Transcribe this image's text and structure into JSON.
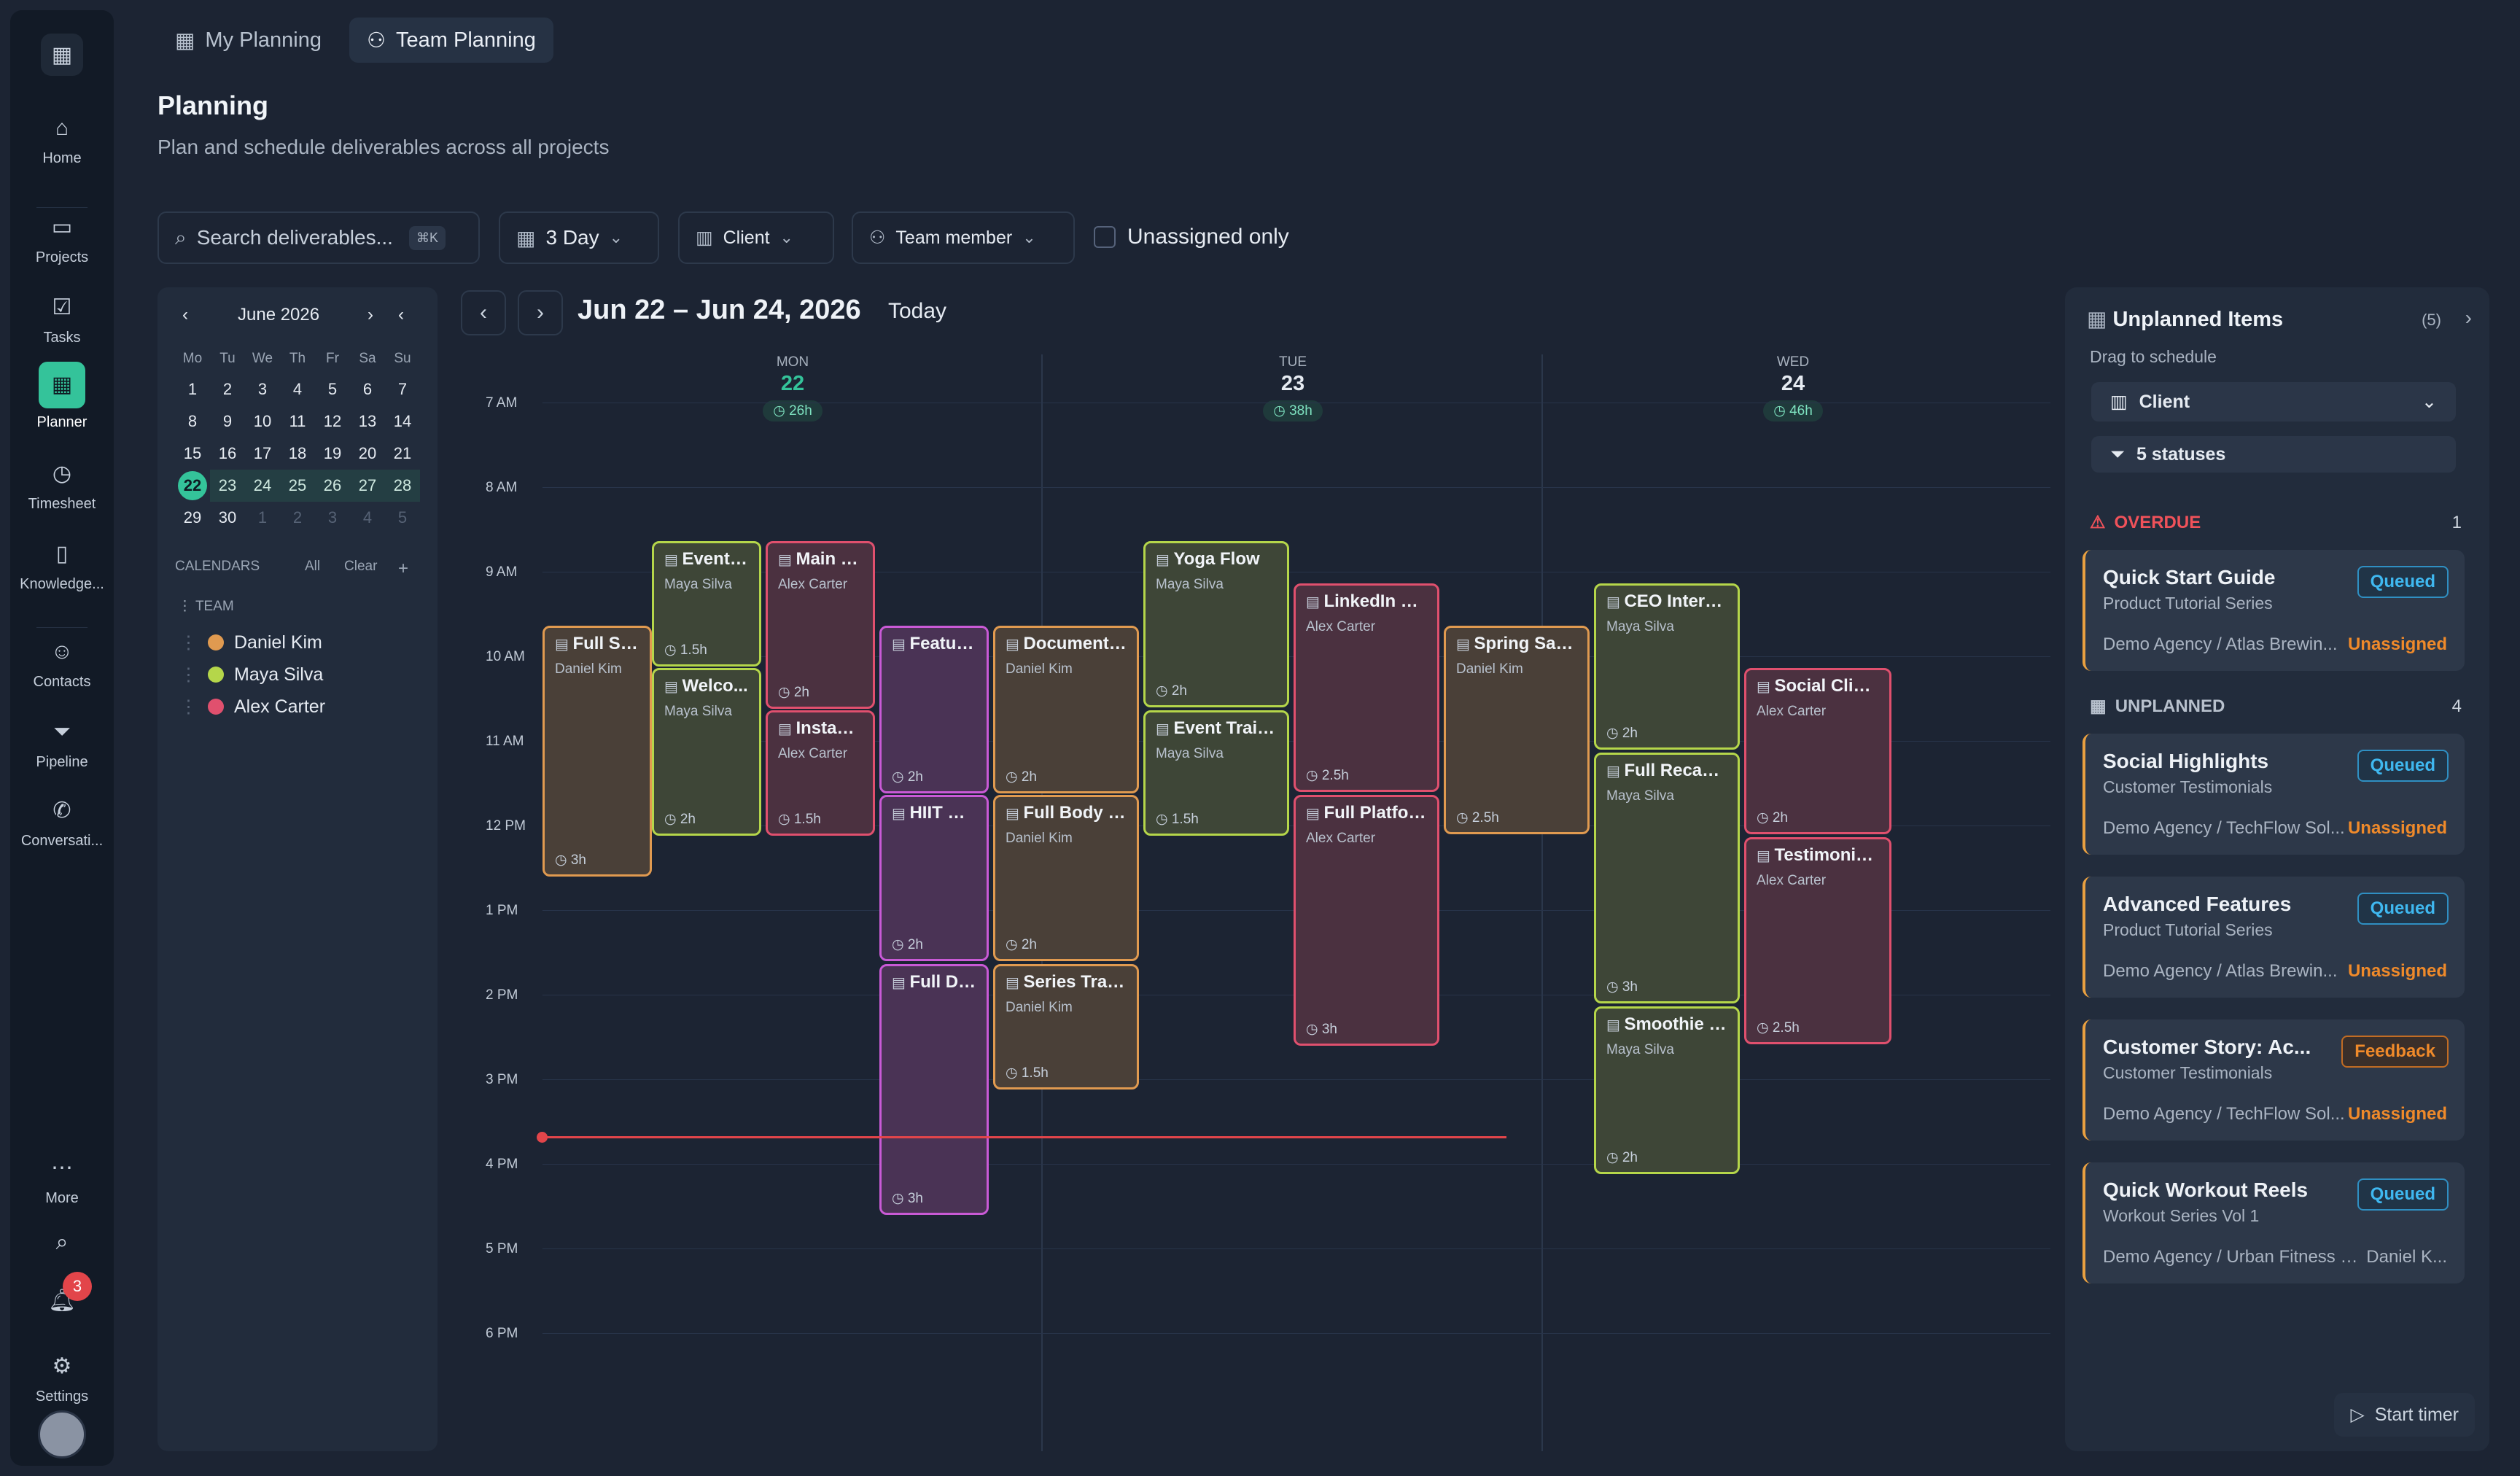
{
  "nav": {
    "items": [
      {
        "label": "Home",
        "icon": "home-icon"
      },
      {
        "label": "Projects",
        "icon": "projects-icon"
      },
      {
        "label": "Tasks",
        "icon": "tasks-icon"
      },
      {
        "label": "Planner",
        "icon": "planner-icon",
        "active": true
      },
      {
        "label": "Timesheet",
        "icon": "clock-icon"
      },
      {
        "label": "Knowledge...",
        "icon": "book-icon"
      },
      {
        "label": "Contacts",
        "icon": "contacts-icon"
      },
      {
        "label": "Pipeline",
        "icon": "filter-icon"
      },
      {
        "label": "Conversati...",
        "icon": "phone-icon"
      }
    ],
    "more": "More",
    "settings": "Settings",
    "notifications_count": "3"
  },
  "tabs": [
    {
      "label": "My Planning"
    },
    {
      "label": "Team Planning",
      "active": true
    }
  ],
  "page": {
    "title": "Planning",
    "subtitle": "Plan and schedule deliverables across all projects"
  },
  "filters": {
    "search_placeholder": "Search deliverables...",
    "search_shortcut": "⌘K",
    "view": "3 Day",
    "client": "Client",
    "team_member": "Team member",
    "unassigned_only": "Unassigned only"
  },
  "mini_calendar": {
    "month": "June 2026",
    "weekdays": [
      "Mo",
      "Tu",
      "We",
      "Th",
      "Fr",
      "Sa",
      "Su"
    ],
    "weeks": [
      [
        "1",
        "2",
        "3",
        "4",
        "5",
        "6",
        "7"
      ],
      [
        "8",
        "9",
        "10",
        "11",
        "12",
        "13",
        "14"
      ],
      [
        "15",
        "16",
        "17",
        "18",
        "19",
        "20",
        "21"
      ],
      [
        "22",
        "23",
        "24",
        "25",
        "26",
        "27",
        "28"
      ],
      [
        "29",
        "30",
        "1",
        "2",
        "3",
        "4",
        "5"
      ]
    ],
    "today": "22",
    "calendars_label": "CALENDARS",
    "all": "All",
    "clear": "Clear",
    "team_label": "TEAM",
    "members": [
      {
        "name": "Daniel Kim",
        "color": "#e09a50"
      },
      {
        "name": "Maya Silva",
        "color": "#b5d64a"
      },
      {
        "name": "Alex Carter",
        "color": "#e0506e"
      }
    ]
  },
  "calendar": {
    "range": "Jun 22 – Jun 24, 2026",
    "today_label": "Today",
    "days": [
      {
        "name": "MON",
        "date": "22",
        "hours": "26h",
        "today": true
      },
      {
        "name": "TUE",
        "date": "23",
        "hours": "38h"
      },
      {
        "name": "WED",
        "date": "24",
        "hours": "46h"
      }
    ],
    "hours": [
      "7 AM",
      "8 AM",
      "9 AM",
      "10 AM",
      "11 AM",
      "12 PM",
      "1 PM",
      "2 PM",
      "3 PM",
      "4 PM",
      "5 PM",
      "6 PM"
    ],
    "events": [
      {
        "title": "Full Stu...",
        "person": "Daniel Kim",
        "dur": "3h",
        "color": "orange"
      },
      {
        "title": "Event T...",
        "person": "Maya Silva",
        "dur": "1.5h",
        "color": "green"
      },
      {
        "title": "Welco...",
        "person": "Maya Silva",
        "dur": "2h",
        "color": "green"
      },
      {
        "title": "Main Br...",
        "person": "Alex Carter",
        "dur": "2h",
        "color": "red"
      },
      {
        "title": "Instagr...",
        "person": "Alex Carter",
        "dur": "1.5h",
        "color": "red"
      },
      {
        "title": "Feature...",
        "person": "",
        "dur": "2h",
        "color": "purple"
      },
      {
        "title": "HIIT Se...",
        "person": "",
        "dur": "2h",
        "color": "purple"
      },
      {
        "title": "Full Do...",
        "person": "",
        "dur": "3h",
        "color": "purple"
      },
      {
        "title": "Documentar...",
        "person": "Daniel Kim",
        "dur": "2h",
        "color": "orange"
      },
      {
        "title": "Full Body W...",
        "person": "Daniel Kim",
        "dur": "2h",
        "color": "orange"
      },
      {
        "title": "Series Trailer",
        "person": "Daniel Kim",
        "dur": "1.5h",
        "color": "orange"
      },
      {
        "title": "Yoga Flow",
        "person": "Maya Silva",
        "dur": "2h",
        "color": "green"
      },
      {
        "title": "Event Trailer...",
        "person": "Maya Silva",
        "dur": "1.5h",
        "color": "green"
      },
      {
        "title": "LinkedIn Ver...",
        "person": "Alex Carter",
        "dur": "2.5h",
        "color": "red"
      },
      {
        "title": "Full Platform...",
        "person": "Alex Carter",
        "dur": "3h",
        "color": "red"
      },
      {
        "title": "Spring Salad...",
        "person": "Daniel Kim",
        "dur": "2.5h",
        "color": "orange"
      },
      {
        "title": "CEO Intervie...",
        "person": "Maya Silva",
        "dur": "2h",
        "color": "green"
      },
      {
        "title": "Full Recap V...",
        "person": "Maya Silva",
        "dur": "3h",
        "color": "green"
      },
      {
        "title": "Smoothie Bo...",
        "person": "Maya Silva",
        "dur": "2h",
        "color": "green"
      },
      {
        "title": "Social Clips ...",
        "person": "Alex Carter",
        "dur": "2h",
        "color": "red"
      },
      {
        "title": "Testimonials...",
        "person": "Alex Carter",
        "dur": "2.5h",
        "color": "red"
      }
    ]
  },
  "unplanned": {
    "title": "Unplanned Items",
    "count": "(5)",
    "drag_hint": "Drag to schedule",
    "client_select": "Client",
    "status_filter": "5 statuses",
    "overdue_label": "OVERDUE",
    "overdue_count": "1",
    "unplanned_label": "UNPLANNED",
    "unplanned_count": "4",
    "cards": [
      {
        "title": "Quick Start Guide",
        "status": "Queued",
        "series": "Product Tutorial Series",
        "meta": "Demo Agency / Atlas Brewin...",
        "assignee": "Unassigned"
      },
      {
        "title": "Social Highlights",
        "status": "Queued",
        "series": "Customer Testimonials",
        "meta": "Demo Agency / TechFlow Sol...",
        "assignee": "Unassigned"
      },
      {
        "title": "Advanced Features",
        "status": "Queued",
        "series": "Product Tutorial Series",
        "meta": "Demo Agency / Atlas Brewin...",
        "assignee": "Unassigned"
      },
      {
        "title": "Customer Story: Ac...",
        "status": "Feedback",
        "series": "Customer Testimonials",
        "meta": "Demo Agency / TechFlow Sol...",
        "assignee": "Unassigned"
      },
      {
        "title": "Quick Workout Reels",
        "status": "Queued",
        "series": "Workout Series Vol 1",
        "meta": "Demo Agency / Urban Fitness S...",
        "assignee": "Daniel K..."
      }
    ],
    "start_timer": "Start timer"
  }
}
